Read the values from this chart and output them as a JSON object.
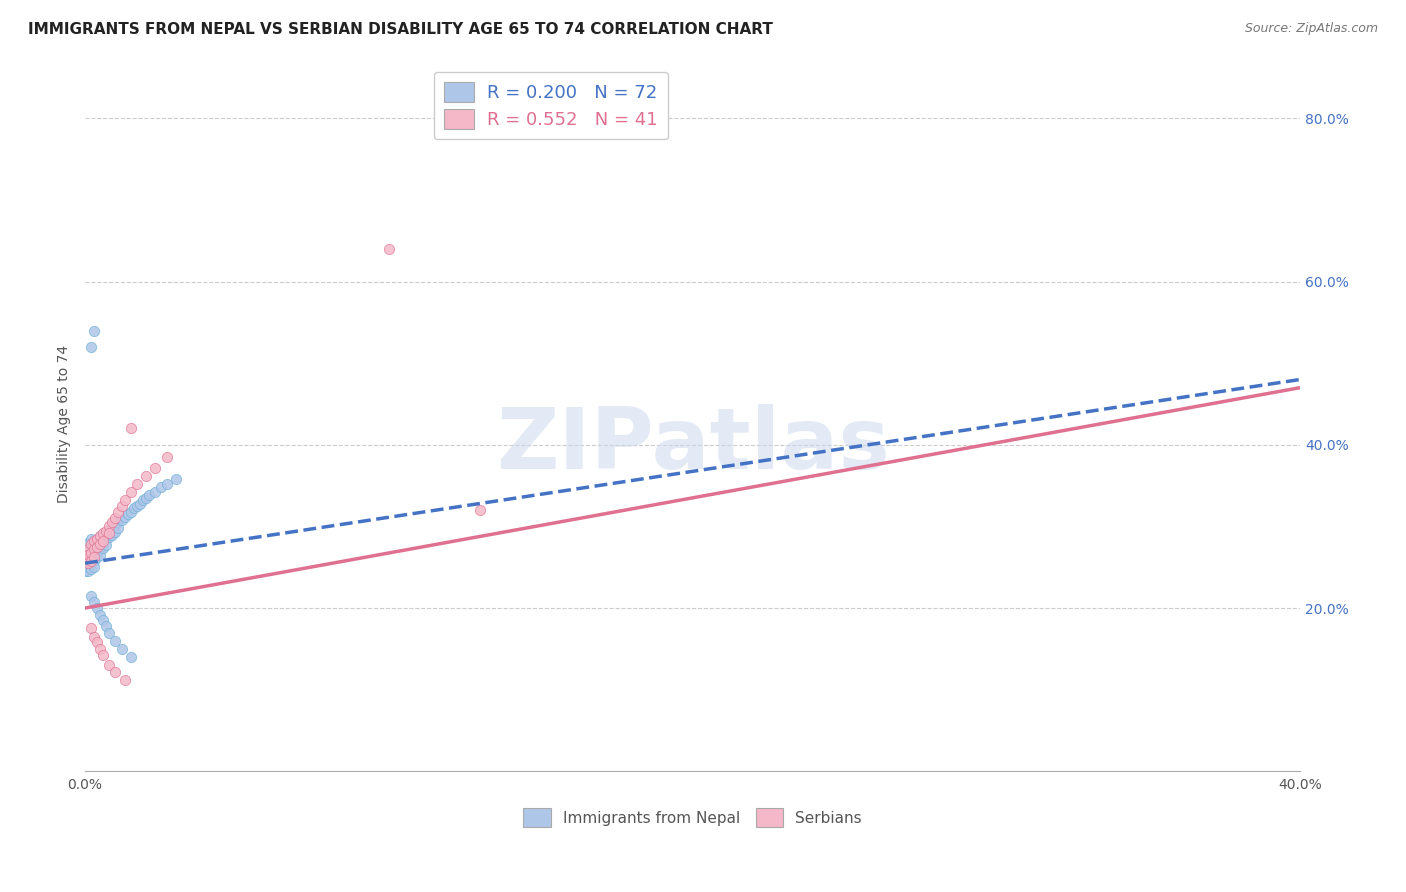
{
  "title": "IMMIGRANTS FROM NEPAL VS SERBIAN DISABILITY AGE 65 TO 74 CORRELATION CHART",
  "source": "Source: ZipAtlas.com",
  "ylabel": "Disability Age 65 to 74",
  "xlabel_nepal": "Immigrants from Nepal",
  "xlabel_serbian": "Serbians",
  "xlim": [
    0.0,
    0.4
  ],
  "ylim": [
    0.0,
    0.85
  ],
  "x_ticks": [
    0.0,
    0.4
  ],
  "x_tick_labels": [
    "0.0%",
    "40.0%"
  ],
  "y_ticks_right": [
    0.2,
    0.4,
    0.6,
    0.8
  ],
  "y_tick_labels_right": [
    "20.0%",
    "40.0%",
    "60.0%",
    "80.0%"
  ],
  "nepal_color": "#aec6e8",
  "nepal_edge_color": "#6aaed6",
  "serbian_color": "#f4b8c8",
  "serbian_edge_color": "#e07090",
  "nepal_R": 0.2,
  "nepal_N": 72,
  "serbian_R": 0.552,
  "serbian_N": 41,
  "nepal_line_color": "#4472c4",
  "serbian_line_color": "#e07090",
  "nepal_line_style": "--",
  "serbian_line_style": "-",
  "watermark_text": "ZIPatlas",
  "title_fontsize": 11,
  "axis_label_fontsize": 10,
  "tick_fontsize": 10,
  "legend_fontsize": 12,
  "scatter_size": 55,
  "nepal_scatter_x": [
    0.0,
    0.0,
    0.0,
    0.0,
    0.0,
    0.0,
    0.001,
    0.001,
    0.001,
    0.001,
    0.001,
    0.001,
    0.001,
    0.002,
    0.002,
    0.002,
    0.002,
    0.002,
    0.002,
    0.003,
    0.003,
    0.003,
    0.003,
    0.003,
    0.004,
    0.004,
    0.004,
    0.004,
    0.005,
    0.005,
    0.005,
    0.005,
    0.006,
    0.006,
    0.006,
    0.007,
    0.007,
    0.007,
    0.008,
    0.008,
    0.009,
    0.009,
    0.01,
    0.01,
    0.011,
    0.011,
    0.012,
    0.013,
    0.014,
    0.015,
    0.016,
    0.017,
    0.018,
    0.019,
    0.02,
    0.021,
    0.023,
    0.025,
    0.027,
    0.03,
    0.002,
    0.003,
    0.004,
    0.005,
    0.006,
    0.007,
    0.008,
    0.01,
    0.012,
    0.015,
    0.002,
    0.003
  ],
  "nepal_scatter_y": [
    0.27,
    0.265,
    0.26,
    0.255,
    0.25,
    0.245,
    0.28,
    0.27,
    0.265,
    0.26,
    0.255,
    0.25,
    0.245,
    0.285,
    0.275,
    0.268,
    0.26,
    0.255,
    0.248,
    0.28,
    0.272,
    0.265,
    0.258,
    0.25,
    0.285,
    0.278,
    0.27,
    0.262,
    0.288,
    0.28,
    0.272,
    0.265,
    0.29,
    0.282,
    0.274,
    0.292,
    0.285,
    0.277,
    0.295,
    0.287,
    0.298,
    0.29,
    0.302,
    0.293,
    0.305,
    0.298,
    0.308,
    0.312,
    0.315,
    0.318,
    0.322,
    0.325,
    0.328,
    0.332,
    0.335,
    0.338,
    0.342,
    0.348,
    0.352,
    0.358,
    0.215,
    0.208,
    0.2,
    0.192,
    0.185,
    0.178,
    0.17,
    0.16,
    0.15,
    0.14,
    0.52,
    0.54
  ],
  "serbian_scatter_x": [
    0.0,
    0.0,
    0.001,
    0.001,
    0.001,
    0.002,
    0.002,
    0.002,
    0.003,
    0.003,
    0.003,
    0.004,
    0.004,
    0.005,
    0.005,
    0.006,
    0.006,
    0.007,
    0.008,
    0.008,
    0.009,
    0.01,
    0.011,
    0.012,
    0.013,
    0.015,
    0.017,
    0.02,
    0.023,
    0.027,
    0.002,
    0.003,
    0.004,
    0.005,
    0.006,
    0.008,
    0.01,
    0.013,
    0.1,
    0.13,
    0.015
  ],
  "serbian_scatter_y": [
    0.265,
    0.258,
    0.272,
    0.265,
    0.255,
    0.278,
    0.268,
    0.258,
    0.282,
    0.272,
    0.262,
    0.285,
    0.275,
    0.288,
    0.278,
    0.292,
    0.282,
    0.295,
    0.3,
    0.292,
    0.305,
    0.31,
    0.318,
    0.325,
    0.332,
    0.342,
    0.352,
    0.362,
    0.372,
    0.385,
    0.175,
    0.165,
    0.158,
    0.15,
    0.142,
    0.13,
    0.122,
    0.112,
    0.64,
    0.32,
    0.42
  ],
  "nepal_line_x0": 0.0,
  "nepal_line_x1": 0.4,
  "nepal_line_y0": 0.255,
  "nepal_line_y1": 0.48,
  "serbian_line_x0": 0.0,
  "serbian_line_x1": 0.4,
  "serbian_line_y0": 0.2,
  "serbian_line_y1": 0.47
}
